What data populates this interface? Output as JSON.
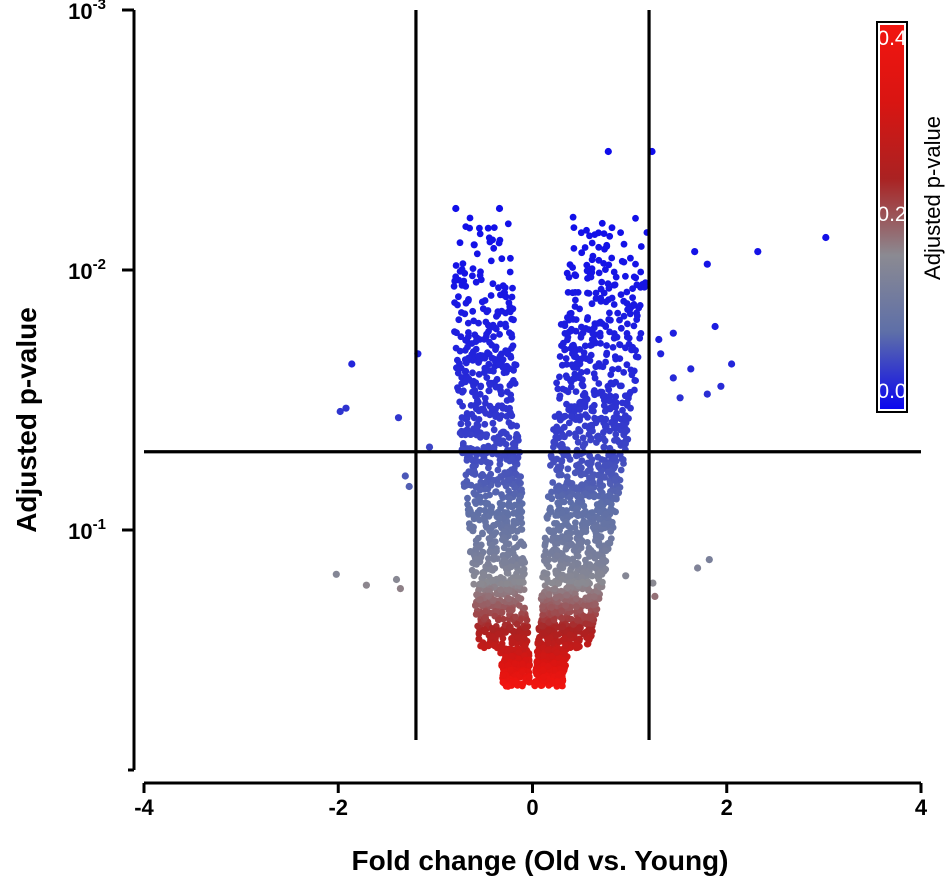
{
  "chart_data": {
    "type": "scatter",
    "title": "",
    "xlabel": "Fold change (Old vs. Young)",
    "ylabel": "Adjusted p-value",
    "xlim": [
      -4,
      4
    ],
    "ylim_log": [
      0.42,
      0.001
    ],
    "y_scale": "log, inverted",
    "x_ticks": [
      "-4",
      "-2",
      "0",
      "2",
      "4"
    ],
    "y_ticks": [
      {
        "value": 0.001,
        "base": "10",
        "exp": "-3"
      },
      {
        "value": 0.01,
        "base": "10",
        "exp": "-2"
      },
      {
        "value": 0.1,
        "base": "10",
        "exp": "-1"
      }
    ],
    "threshold_lines": {
      "fold_change": [
        -1.2,
        1.2
      ],
      "p_value": 0.05
    },
    "grid": false,
    "colorbar": {
      "label": "Adjusted p-value",
      "ticks": [
        "0.0",
        "0.2",
        "0.4"
      ],
      "colors": [
        "#0b07ee",
        "#5e6fa8",
        "#8b8a92",
        "#aa2222",
        "#d91512",
        "#f21510"
      ]
    },
    "outlier_points": [
      {
        "x": 0.78,
        "p": 0.0035
      },
      {
        "x": 1.23,
        "p": 0.0035
      },
      {
        "x": 3.02,
        "p": 0.0075
      },
      {
        "x": 2.32,
        "p": 0.0085
      },
      {
        "x": 1.67,
        "p": 0.0085
      },
      {
        "x": 1.8,
        "p": 0.0095
      },
      {
        "x": 1.88,
        "p": 0.0165
      },
      {
        "x": 1.45,
        "p": 0.0175
      },
      {
        "x": 1.3,
        "p": 0.0185
      },
      {
        "x": 1.32,
        "p": 0.021
      },
      {
        "x": 1.63,
        "p": 0.024
      },
      {
        "x": 1.45,
        "p": 0.026
      },
      {
        "x": 1.94,
        "p": 0.028
      },
      {
        "x": 2.05,
        "p": 0.023
      },
      {
        "x": 1.52,
        "p": 0.031
      },
      {
        "x": 1.8,
        "p": 0.03
      },
      {
        "x": -0.79,
        "p": 0.0058
      },
      {
        "x": -0.34,
        "p": 0.0058
      },
      {
        "x": -0.6,
        "p": 0.008
      },
      {
        "x": -1.18,
        "p": 0.021
      },
      {
        "x": -1.86,
        "p": 0.023
      },
      {
        "x": -1.92,
        "p": 0.034
      },
      {
        "x": -1.98,
        "p": 0.035
      },
      {
        "x": -1.38,
        "p": 0.037
      },
      {
        "x": -1.06,
        "p": 0.048
      },
      {
        "x": -1.31,
        "p": 0.062
      },
      {
        "x": -1.27,
        "p": 0.068
      },
      {
        "x": -2.02,
        "p": 0.148
      },
      {
        "x": -1.71,
        "p": 0.163
      },
      {
        "x": -1.4,
        "p": 0.155
      },
      {
        "x": -1.36,
        "p": 0.168
      },
      {
        "x": 0.86,
        "p": 0.075
      },
      {
        "x": 1.82,
        "p": 0.13
      },
      {
        "x": 1.7,
        "p": 0.14
      },
      {
        "x": 1.24,
        "p": 0.16
      },
      {
        "x": 1.26,
        "p": 0.18
      },
      {
        "x": 0.96,
        "p": 0.15
      }
    ],
    "cloud": {
      "description_free": true,
      "p_min": 0.0058,
      "p_max": 0.4
    }
  }
}
